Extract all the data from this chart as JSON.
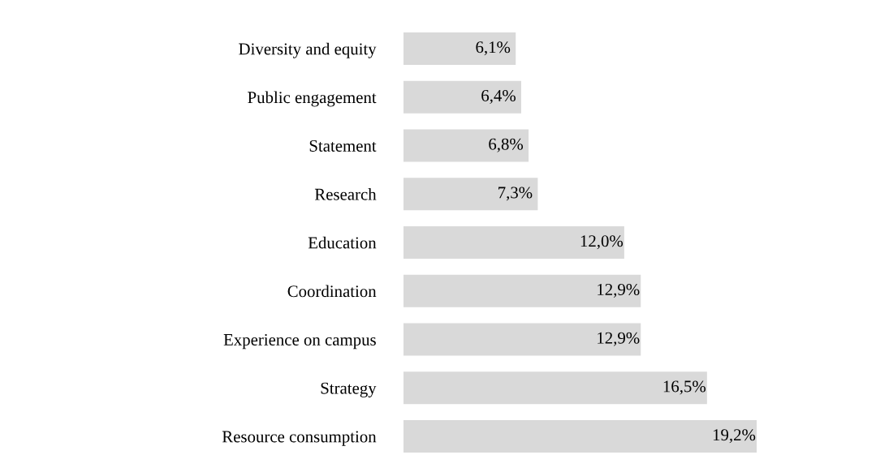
{
  "chart_data": {
    "type": "bar",
    "orientation": "horizontal",
    "color": "#d9d9d9",
    "categories": [
      "Diversity and equity",
      "Public engagement",
      "Statement",
      "Research",
      "Education",
      "Coordination",
      "Experience on campus",
      "Strategy",
      "Resource consumption"
    ],
    "values": [
      6.1,
      6.4,
      6.8,
      7.3,
      12.0,
      12.9,
      12.9,
      16.5,
      19.2
    ],
    "value_labels": [
      "6,1%",
      "6,4%",
      "6,8%",
      "7,3%",
      "12,0%",
      "12,9%",
      "12,9%",
      "16,5%",
      "19,2%"
    ],
    "grid": false,
    "legend": false
  }
}
